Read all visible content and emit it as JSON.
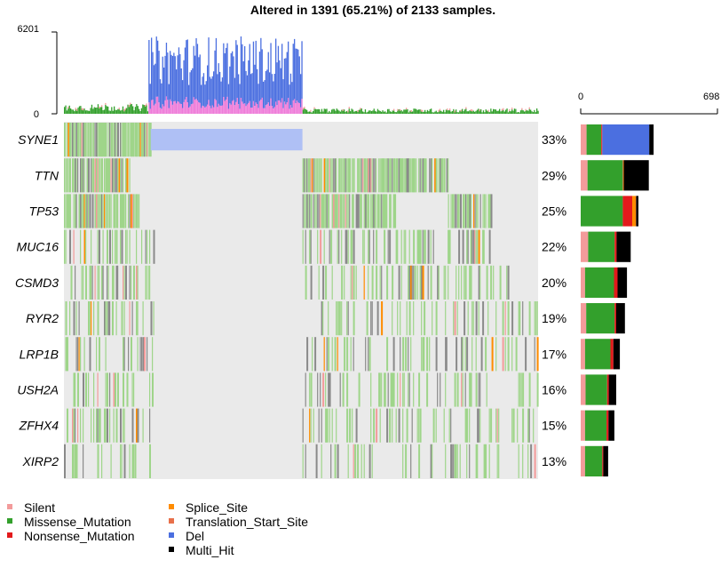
{
  "chart_data": {
    "type": "oncoplot",
    "title": "Altered in 1391 (65.21%) of 2133 samples.",
    "tmb_axis": {
      "ticks": [
        "0",
        "6201"
      ],
      "max": 6201
    },
    "count_axis": {
      "ticks": [
        "0",
        "698"
      ],
      "max": 698
    },
    "genes": [
      "SYNE1",
      "TTN",
      "TP53",
      "MUC16",
      "CSMD3",
      "RYR2",
      "LRP1B",
      "USH2A",
      "ZFHX4",
      "XIRP2"
    ],
    "percent_labels": [
      "33%",
      "29%",
      "25%",
      "22%",
      "20%",
      "19%",
      "17%",
      "16%",
      "15%",
      "13%"
    ],
    "gene_variant_counts": [
      {
        "gene": "SYNE1",
        "Silent": 30,
        "Missense_Mutation": 75,
        "Nonsense_Mutation": 5,
        "Del": 240,
        "Multi_Hit": 22
      },
      {
        "gene": "TTN",
        "Silent": 35,
        "Missense_Mutation": 180,
        "Nonsense_Mutation": 2,
        "Splice_Site": 3,
        "Multi_Hit": 128
      },
      {
        "gene": "TP53",
        "Missense_Mutation": 215,
        "Nonsense_Mutation": 48,
        "Splice_Site": 18,
        "Translation_Start_Site": 2,
        "Multi_Hit": 12
      },
      {
        "gene": "MUC16",
        "Silent": 38,
        "Missense_Mutation": 135,
        "Nonsense_Mutation": 10,
        "Multi_Hit": 72
      },
      {
        "gene": "CSMD3",
        "Silent": 22,
        "Missense_Mutation": 148,
        "Nonsense_Mutation": 18,
        "Multi_Hit": 48
      },
      {
        "gene": "RYR2",
        "Silent": 28,
        "Missense_Mutation": 145,
        "Nonsense_Mutation": 8,
        "Multi_Hit": 45
      },
      {
        "gene": "LRP1B",
        "Silent": 22,
        "Missense_Mutation": 130,
        "Nonsense_Mutation": 15,
        "Multi_Hit": 33
      },
      {
        "gene": "USH2A",
        "Silent": 25,
        "Missense_Mutation": 110,
        "Nonsense_Mutation": 8,
        "Multi_Hit": 38
      },
      {
        "gene": "ZFHX4",
        "Silent": 22,
        "Missense_Mutation": 110,
        "Nonsense_Mutation": 10,
        "Multi_Hit": 30
      },
      {
        "gene": "XIRP2",
        "Silent": 22,
        "Missense_Mutation": 88,
        "Nonsense_Mutation": 5,
        "Multi_Hit": 25
      }
    ],
    "legend": [
      {
        "label": "Silent",
        "color": "#F39B9B"
      },
      {
        "label": "Missense_Mutation",
        "color": "#33A02C"
      },
      {
        "label": "Nonsense_Mutation",
        "color": "#E31A1C"
      },
      {
        "label": "Splice_Site",
        "color": "#FF8C00"
      },
      {
        "label": "Translation_Start_Site",
        "color": "#E8704A"
      },
      {
        "label": "Del",
        "color": "#4B6FE0"
      },
      {
        "label": "Multi_Hit",
        "color": "#000000"
      }
    ],
    "colors": {
      "background": "#EAEAEA",
      "missense_light": "#9FD58A",
      "multi_hit_gray": "#8A8A8A",
      "tmb_pink": "#EE7BD9"
    }
  }
}
